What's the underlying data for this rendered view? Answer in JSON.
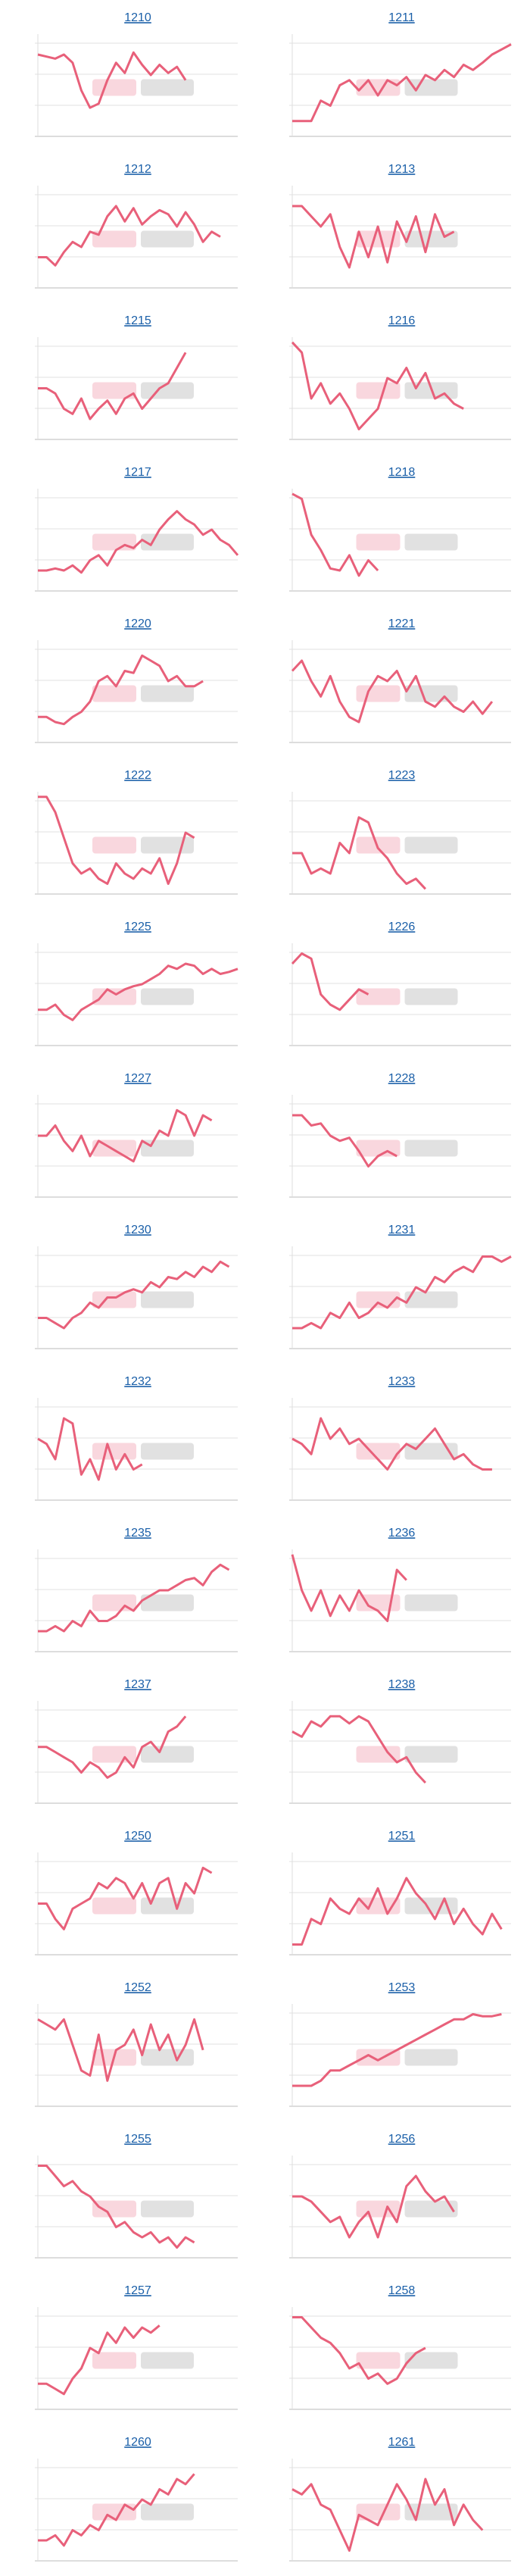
{
  "chart_data": [
    {
      "type": "line",
      "title": "1210",
      "color": "#e8607a",
      "ylim": [
        0,
        100
      ],
      "values": [
        80,
        78,
        76,
        80,
        72,
        45,
        28,
        32,
        55,
        72,
        62,
        82,
        70,
        60,
        70,
        62,
        68,
        55,
        null,
        null,
        null,
        null,
        null,
        null
      ]
    },
    {
      "type": "line",
      "title": "1211",
      "color": "#e8607a",
      "ylim": [
        0,
        100
      ],
      "values": [
        15,
        15,
        15,
        35,
        30,
        50,
        55,
        45,
        55,
        40,
        55,
        50,
        58,
        45,
        60,
        55,
        65,
        58,
        70,
        65,
        72,
        80,
        85,
        90
      ]
    },
    {
      "type": "line",
      "title": "1212",
      "color": "#e8607a",
      "ylim": [
        0,
        100
      ],
      "values": [
        30,
        30,
        22,
        35,
        45,
        40,
        55,
        52,
        70,
        80,
        65,
        78,
        62,
        70,
        76,
        72,
        60,
        74,
        62,
        45,
        55,
        50,
        null,
        null
      ]
    },
    {
      "type": "line",
      "title": "1213",
      "color": "#e8607a",
      "ylim": [
        0,
        100
      ],
      "values": [
        80,
        80,
        70,
        60,
        72,
        40,
        20,
        55,
        30,
        60,
        25,
        65,
        45,
        70,
        35,
        72,
        50,
        55,
        null,
        null,
        null,
        null,
        null,
        null
      ]
    },
    {
      "type": "line",
      "title": "1215",
      "color": "#e8607a",
      "ylim": [
        0,
        100
      ],
      "values": [
        50,
        50,
        45,
        30,
        25,
        40,
        20,
        30,
        38,
        25,
        40,
        45,
        30,
        40,
        50,
        55,
        70,
        85,
        null,
        null,
        null,
        null,
        null,
        null
      ]
    },
    {
      "type": "line",
      "title": "1216",
      "color": "#e8607a",
      "ylim": [
        0,
        100
      ],
      "values": [
        95,
        85,
        40,
        55,
        35,
        45,
        30,
        10,
        20,
        30,
        60,
        55,
        70,
        50,
        65,
        40,
        45,
        35,
        30,
        null,
        null,
        null,
        null,
        null
      ]
    },
    {
      "type": "line",
      "title": "1217",
      "color": "#e8607a",
      "ylim": [
        0,
        100
      ],
      "values": [
        20,
        20,
        22,
        20,
        25,
        18,
        30,
        35,
        25,
        40,
        45,
        42,
        50,
        45,
        60,
        70,
        78,
        70,
        65,
        55,
        60,
        50,
        45,
        35
      ]
    },
    {
      "type": "line",
      "title": "1218",
      "color": "#e8607a",
      "ylim": [
        0,
        100
      ],
      "values": [
        95,
        90,
        55,
        40,
        22,
        20,
        35,
        15,
        30,
        20,
        null,
        null,
        null,
        null,
        null,
        null,
        null,
        null,
        null,
        null,
        null,
        null,
        null,
        null
      ]
    },
    {
      "type": "line",
      "title": "1220",
      "color": "#e8607a",
      "ylim": [
        0,
        100
      ],
      "values": [
        25,
        25,
        20,
        18,
        25,
        30,
        40,
        60,
        65,
        55,
        70,
        68,
        85,
        80,
        75,
        60,
        65,
        55,
        55,
        60,
        null,
        null,
        null,
        null
      ]
    },
    {
      "type": "line",
      "title": "1221",
      "color": "#e8607a",
      "ylim": [
        0,
        100
      ],
      "values": [
        70,
        80,
        60,
        45,
        65,
        40,
        25,
        20,
        50,
        65,
        60,
        70,
        50,
        65,
        40,
        35,
        45,
        35,
        30,
        40,
        28,
        40,
        null,
        null
      ]
    },
    {
      "type": "line",
      "title": "1222",
      "color": "#e8607a",
      "ylim": [
        0,
        100
      ],
      "values": [
        95,
        95,
        80,
        55,
        30,
        20,
        25,
        15,
        10,
        30,
        20,
        15,
        25,
        20,
        35,
        10,
        30,
        60,
        55,
        null,
        null,
        null,
        null,
        null
      ]
    },
    {
      "type": "line",
      "title": "1223",
      "color": "#e8607a",
      "ylim": [
        0,
        100
      ],
      "values": [
        40,
        40,
        20,
        25,
        20,
        50,
        40,
        75,
        70,
        45,
        35,
        20,
        10,
        15,
        5,
        null,
        null,
        null,
        null,
        null,
        null,
        null,
        null,
        null
      ]
    },
    {
      "type": "line",
      "title": "1225",
      "color": "#e8607a",
      "ylim": [
        0,
        100
      ],
      "values": [
        35,
        35,
        40,
        30,
        25,
        35,
        40,
        45,
        55,
        50,
        55,
        58,
        60,
        65,
        70,
        78,
        75,
        80,
        78,
        70,
        75,
        70,
        72,
        75
      ]
    },
    {
      "type": "line",
      "title": "1226",
      "color": "#e8607a",
      "ylim": [
        0,
        100
      ],
      "values": [
        80,
        90,
        85,
        50,
        40,
        35,
        45,
        55,
        50,
        null,
        null,
        null,
        null,
        null,
        null,
        null,
        null,
        null,
        null,
        null,
        null,
        null,
        null,
        null
      ]
    },
    {
      "type": "line",
      "title": "1227",
      "color": "#e8607a",
      "ylim": [
        0,
        100
      ],
      "values": [
        60,
        60,
        70,
        55,
        45,
        60,
        40,
        55,
        50,
        45,
        40,
        35,
        55,
        50,
        65,
        60,
        85,
        80,
        60,
        80,
        75,
        null,
        null,
        null
      ]
    },
    {
      "type": "line",
      "title": "1228",
      "color": "#e8607a",
      "ylim": [
        0,
        100
      ],
      "values": [
        80,
        80,
        70,
        72,
        60,
        55,
        58,
        45,
        30,
        40,
        45,
        40,
        null,
        null,
        null,
        null,
        null,
        null,
        null,
        null,
        null,
        null,
        null,
        null
      ]
    },
    {
      "type": "line",
      "title": "1230",
      "color": "#e8607a",
      "ylim": [
        0,
        100
      ],
      "values": [
        30,
        30,
        25,
        20,
        30,
        35,
        45,
        40,
        50,
        50,
        55,
        58,
        55,
        65,
        60,
        70,
        68,
        75,
        70,
        80,
        75,
        85,
        80,
        null
      ]
    },
    {
      "type": "line",
      "title": "1231",
      "color": "#e8607a",
      "ylim": [
        0,
        100
      ],
      "values": [
        20,
        20,
        25,
        20,
        35,
        30,
        45,
        30,
        35,
        45,
        40,
        50,
        45,
        60,
        55,
        70,
        65,
        75,
        80,
        75,
        90,
        90,
        85,
        90
      ]
    },
    {
      "type": "line",
      "title": "1232",
      "color": "#e8607a",
      "ylim": [
        0,
        100
      ],
      "values": [
        60,
        55,
        40,
        80,
        75,
        25,
        40,
        20,
        55,
        30,
        45,
        30,
        35,
        null,
        null,
        null,
        null,
        null,
        null,
        null,
        null,
        null,
        null,
        null
      ]
    },
    {
      "type": "line",
      "title": "1233",
      "color": "#e8607a",
      "ylim": [
        0,
        100
      ],
      "values": [
        60,
        55,
        45,
        80,
        60,
        70,
        55,
        60,
        50,
        40,
        30,
        45,
        55,
        50,
        60,
        70,
        55,
        40,
        45,
        35,
        30,
        30,
        null,
        null
      ]
    },
    {
      "type": "line",
      "title": "1235",
      "color": "#e8607a",
      "ylim": [
        0,
        100
      ],
      "values": [
        20,
        20,
        25,
        20,
        30,
        25,
        40,
        30,
        30,
        35,
        45,
        40,
        50,
        55,
        60,
        60,
        65,
        70,
        72,
        65,
        78,
        85,
        80,
        null
      ]
    },
    {
      "type": "line",
      "title": "1236",
      "color": "#e8607a",
      "ylim": [
        0,
        100
      ],
      "values": [
        95,
        60,
        40,
        60,
        35,
        55,
        40,
        60,
        45,
        40,
        30,
        80,
        70,
        null,
        null,
        null,
        null,
        null,
        null,
        null,
        null,
        null,
        null,
        null
      ]
    },
    {
      "type": "line",
      "title": "1237",
      "color": "#e8607a",
      "ylim": [
        0,
        100
      ],
      "values": [
        55,
        55,
        50,
        45,
        40,
        30,
        40,
        35,
        25,
        30,
        45,
        35,
        55,
        60,
        50,
        70,
        75,
        85,
        null,
        null,
        null,
        null,
        null,
        null
      ]
    },
    {
      "type": "line",
      "title": "1238",
      "color": "#e8607a",
      "ylim": [
        0,
        100
      ],
      "values": [
        70,
        65,
        80,
        75,
        85,
        85,
        78,
        85,
        80,
        65,
        50,
        40,
        45,
        30,
        20,
        null,
        null,
        null,
        null,
        null,
        null,
        null,
        null,
        null
      ]
    },
    {
      "type": "line",
      "title": "1250",
      "color": "#e8607a",
      "ylim": [
        0,
        100
      ],
      "values": [
        50,
        50,
        35,
        25,
        45,
        50,
        55,
        70,
        65,
        75,
        70,
        55,
        70,
        50,
        70,
        75,
        45,
        70,
        60,
        85,
        80,
        null,
        null,
        null
      ]
    },
    {
      "type": "line",
      "title": "1251",
      "color": "#e8607a",
      "ylim": [
        0,
        100
      ],
      "values": [
        10,
        10,
        35,
        30,
        55,
        45,
        40,
        55,
        45,
        65,
        40,
        55,
        75,
        60,
        50,
        35,
        55,
        30,
        45,
        30,
        20,
        40,
        25,
        null
      ]
    },
    {
      "type": "line",
      "title": "1252",
      "color": "#e8607a",
      "ylim": [
        0,
        100
      ],
      "values": [
        85,
        80,
        75,
        85,
        60,
        35,
        30,
        70,
        25,
        55,
        60,
        75,
        50,
        80,
        55,
        70,
        45,
        60,
        85,
        55,
        null,
        null,
        null,
        null
      ]
    },
    {
      "type": "line",
      "title": "1253",
      "color": "#e8607a",
      "ylim": [
        0,
        100
      ],
      "values": [
        20,
        20,
        20,
        25,
        35,
        35,
        40,
        45,
        50,
        45,
        50,
        55,
        60,
        65,
        70,
        75,
        80,
        85,
        85,
        90,
        88,
        88,
        90,
        null
      ]
    },
    {
      "type": "line",
      "title": "1255",
      "color": "#e8607a",
      "ylim": [
        0,
        100
      ],
      "values": [
        90,
        90,
        80,
        70,
        75,
        65,
        60,
        50,
        45,
        30,
        35,
        25,
        20,
        25,
        15,
        20,
        10,
        20,
        15,
        null,
        null,
        null,
        null,
        null
      ]
    },
    {
      "type": "line",
      "title": "1256",
      "color": "#e8607a",
      "ylim": [
        0,
        100
      ],
      "values": [
        60,
        60,
        55,
        45,
        35,
        40,
        20,
        35,
        45,
        20,
        50,
        35,
        70,
        80,
        65,
        55,
        60,
        45,
        null,
        null,
        null,
        null,
        null,
        null
      ]
    },
    {
      "type": "line",
      "title": "1257",
      "color": "#e8607a",
      "ylim": [
        0,
        100
      ],
      "values": [
        25,
        25,
        20,
        15,
        30,
        40,
        60,
        55,
        75,
        65,
        80,
        70,
        80,
        75,
        82,
        null,
        null,
        null,
        null,
        null,
        null,
        null,
        null,
        null
      ]
    },
    {
      "type": "line",
      "title": "1258",
      "color": "#e8607a",
      "ylim": [
        0,
        100
      ],
      "values": [
        90,
        90,
        80,
        70,
        65,
        55,
        40,
        45,
        30,
        35,
        25,
        30,
        45,
        55,
        60,
        null,
        null,
        null,
        null,
        null,
        null,
        null,
        null,
        null
      ]
    },
    {
      "type": "line",
      "title": "1260",
      "color": "#e8607a",
      "ylim": [
        0,
        100
      ],
      "values": [
        20,
        20,
        25,
        15,
        30,
        25,
        35,
        30,
        45,
        40,
        55,
        50,
        60,
        55,
        70,
        65,
        80,
        75,
        85,
        null,
        null,
        null,
        null,
        null
      ]
    },
    {
      "type": "line",
      "title": "1261",
      "color": "#e8607a",
      "ylim": [
        0,
        100
      ],
      "values": [
        70,
        65,
        75,
        55,
        50,
        30,
        10,
        45,
        40,
        35,
        55,
        75,
        60,
        40,
        80,
        55,
        70,
        35,
        55,
        40,
        30,
        null,
        null,
        null
      ]
    }
  ]
}
